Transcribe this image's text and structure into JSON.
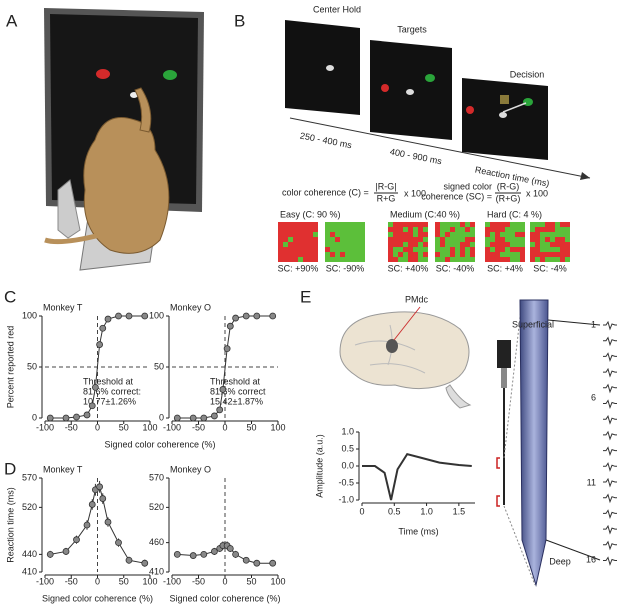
{
  "panels": [
    "A",
    "B",
    "C",
    "D",
    "E"
  ],
  "task": {
    "epochs": [
      "Center Hold",
      "Targets",
      "Decision"
    ],
    "durations": [
      "250 - 400 ms",
      "400 - 900 ms",
      "Reaction time (ms)"
    ],
    "coherence": {
      "name": "color coherence (C) =",
      "numerator": "|R-G|",
      "denominator": "R+G",
      "times": "x 100"
    },
    "signed": {
      "name": [
        "signed color",
        "coherence (SC) ="
      ],
      "numerator": "(R-G)",
      "denominator": "(R+G)",
      "times": "x 100"
    },
    "stimuli": [
      {
        "label": "Easy (C: 90 %)",
        "sc": [
          "SC: +90%",
          "SC: -90%"
        ]
      },
      {
        "label": "Medium (C:40 %)",
        "sc": [
          "SC: +40%",
          "SC: -40%"
        ]
      },
      {
        "label": "Hard (C: 4 %)",
        "sc": [
          "SC: +4%",
          "SC: -4%"
        ]
      }
    ]
  },
  "chart_data": [
    {
      "type": "line",
      "title": "Monkey T",
      "ylabel": "Percent reported red",
      "xlabel": "Signed color coherence (%)",
      "x": [
        -90,
        -60,
        -40,
        -20,
        -10,
        -4,
        4,
        10,
        20,
        40,
        60,
        90
      ],
      "series": [
        {
          "color": "#888888",
          "values": [
            0,
            0,
            1,
            3,
            12,
            30,
            72,
            88,
            97,
            100,
            100,
            100
          ]
        }
      ],
      "xlim": [
        -100,
        100
      ],
      "xticks": [
        -100,
        -50,
        0,
        50,
        100
      ],
      "ylim": [
        0,
        100
      ],
      "yticks": [
        0,
        50,
        100
      ],
      "hlines": [
        50
      ],
      "vlines": [
        0
      ],
      "annotation": [
        "Threshold at",
        "81.6% correct:",
        "10.77±1.26%"
      ]
    },
    {
      "type": "line",
      "title": "Monkey O",
      "x": [
        -90,
        -60,
        -40,
        -20,
        -10,
        -4,
        4,
        10,
        20,
        40,
        60,
        90
      ],
      "series": [
        {
          "color": "#888888",
          "values": [
            0,
            0,
            0,
            2,
            8,
            28,
            68,
            90,
            98,
            100,
            100,
            100
          ]
        }
      ],
      "xlim": [
        -100,
        100
      ],
      "xticks": [
        -100,
        -50,
        0,
        50,
        100
      ],
      "ylim": [
        0,
        100
      ],
      "yticks": [
        0,
        50,
        100
      ],
      "hlines": [
        50
      ],
      "vlines": [
        0
      ],
      "annotation": [
        "Threshold at",
        "81.6% correct",
        "15.42±1.87%"
      ]
    },
    {
      "type": "line",
      "title": "Monkey T",
      "ylabel": "Reaction time (ms)",
      "xlabel": "Signed color coherence (%)",
      "x": [
        -90,
        -60,
        -40,
        -20,
        -10,
        -4,
        4,
        10,
        20,
        40,
        60,
        90
      ],
      "series": [
        {
          "color": "#888888",
          "values": [
            440,
            445,
            465,
            490,
            525,
            550,
            555,
            535,
            495,
            460,
            430,
            425
          ],
          "errors": [
            6,
            6,
            7,
            8,
            9,
            10,
            10,
            9,
            8,
            7,
            6,
            6
          ]
        }
      ],
      "xlim": [
        -100,
        100
      ],
      "xticks": [
        -100,
        -50,
        0,
        50,
        100
      ],
      "ylim": [
        410,
        570
      ],
      "yticks": [
        410,
        440,
        520,
        570
      ],
      "vlines": [
        0
      ]
    },
    {
      "type": "line",
      "title": "Monkey O",
      "xlabel": "Signed color coherence (%)",
      "x": [
        -90,
        -60,
        -40,
        -20,
        -10,
        -4,
        4,
        10,
        20,
        40,
        60,
        90
      ],
      "series": [
        {
          "color": "#888888",
          "values": [
            440,
            438,
            440,
            445,
            450,
            455,
            455,
            450,
            440,
            430,
            425,
            425
          ],
          "errors": [
            5,
            5,
            5,
            6,
            6,
            7,
            7,
            6,
            6,
            5,
            5,
            5
          ]
        }
      ],
      "xlim": [
        -100,
        100
      ],
      "xticks": [
        -100,
        -50,
        0,
        50,
        100
      ],
      "ylim": [
        410,
        570
      ],
      "yticks": [
        410,
        460,
        520,
        570
      ],
      "vlines": [
        0
      ]
    },
    {
      "type": "waveform",
      "ylabel": "Amplitude (a.u.)",
      "xlabel": "Time (ms)",
      "x": [
        0,
        0.2,
        0.35,
        0.45,
        0.55,
        0.7,
        0.9,
        1.2,
        1.5,
        1.7
      ],
      "series": [
        {
          "color": "#333333",
          "values": [
            0,
            0,
            -0.2,
            -1.0,
            -0.1,
            0.35,
            0.25,
            0.1,
            0.03,
            0
          ]
        }
      ],
      "xlim": [
        0,
        1.75
      ],
      "xticks": [
        0,
        0.5,
        {
          "value": 1,
          "label": "1.0"
        },
        1.5
      ],
      "ylim": [
        -1,
        1
      ],
      "yticks": [
        {
          "value": -1,
          "label": "-1.0"
        },
        -0.5,
        {
          "value": 0,
          "label": "0.0"
        },
        0.5,
        {
          "value": 1,
          "label": "1.0"
        }
      ]
    }
  ],
  "probe": {
    "region": "PMdc",
    "top": "Superficial",
    "bottom": "Deep",
    "channels": [
      "1",
      "6",
      "11",
      "16"
    ]
  }
}
